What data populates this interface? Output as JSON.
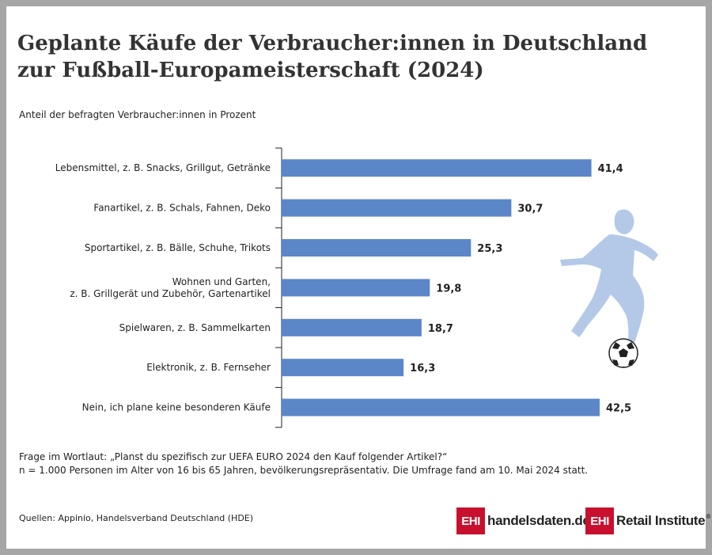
{
  "title": "Geplante Käufe der Verbraucher:innen in Deutschland zur Fußball-Europameisterschaft (2024)",
  "subtitle": "Anteil der befragten Verbraucher:innen in Prozent",
  "note_line1": "Frage im Wortlaut: „Planst du spezifisch zur UEFA EURO 2024 den Kauf folgender Artikel?“",
  "note_line2": "n = 1.000 Personen im Alter von 16 bis 65 Jahren, bevölkerungsrepräsentativ. Die Umfrage fand am 10. Mai 2024 statt.",
  "source": "Quellen: Appinio, Handelsverband Deutschland (HDE)",
  "logos": {
    "handelsdaten": {
      "box": "EHI",
      "text": "handelsdaten.de"
    },
    "retail": {
      "box": "EHI",
      "text": "Retail Institute",
      "reg": "®"
    }
  },
  "colors": {
    "bar": "#5b87c9",
    "player": "#b4c9e8",
    "axis": "#222222"
  },
  "icons": [
    "football-player-icon",
    "soccer-ball-icon"
  ],
  "chart_data": {
    "type": "bar",
    "orientation": "horizontal",
    "categories": [
      [
        "Lebensmittel, z. B. Snacks, Grillgut, Getränke"
      ],
      [
        "Fanartikel, z. B. Schals, Fahnen, Deko"
      ],
      [
        "Sportartikel, z. B. Bälle, Schuhe, Trikots"
      ],
      [
        "Wohnen und Garten,",
        "z. B. Grillgerät und Zubehör, Gartenartikel"
      ],
      [
        "Spielwaren, z. B. Sammelkarten"
      ],
      [
        "Elektronik, z. B. Fernseher"
      ],
      [
        "Nein, ich plane keine besonderen Käufe"
      ]
    ],
    "values": [
      41.4,
      30.7,
      25.3,
      19.8,
      18.7,
      16.3,
      42.5
    ],
    "value_labels": [
      "41,4",
      "30,7",
      "25,3",
      "19,8",
      "18,7",
      "16,3",
      "42,5"
    ],
    "xlim": [
      0,
      42.5
    ],
    "grid": false,
    "legend": "none"
  }
}
